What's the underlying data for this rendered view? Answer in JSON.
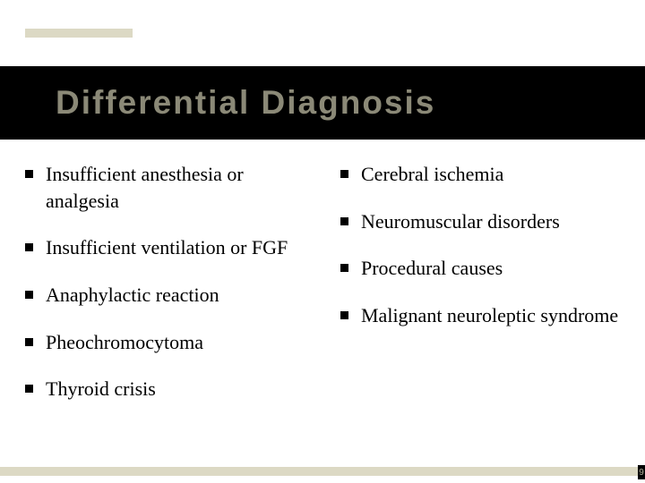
{
  "slide": {
    "title": "Differential Diagnosis",
    "title_color": "#8b8977",
    "title_bg": "#000000",
    "title_fontsize": 37,
    "accent_color": "#dcd9c4",
    "body_fontsize": 22,
    "body_color": "#000000",
    "bullet_marker_color": "#000000",
    "left_items": [
      "Insufficient anesthesia or analgesia",
      "Insufficient ventilation or FGF",
      "Anaphylactic reaction",
      "Pheochromocytoma",
      "Thyroid crisis"
    ],
    "right_items": [
      "Cerebral ischemia",
      "Neuromuscular disorders",
      "Procedural causes",
      "Malignant neuroleptic syndrome"
    ],
    "page_hint": "9"
  }
}
